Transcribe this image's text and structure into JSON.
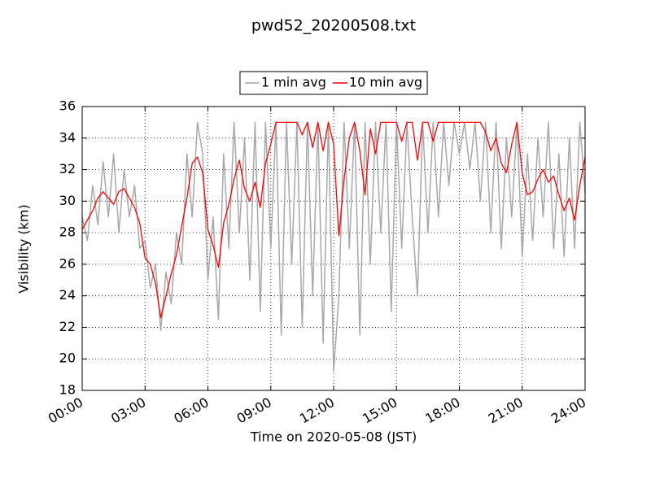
{
  "chart_data": {
    "type": "line",
    "title": "pwd52_20200508.txt",
    "x_label": "Time on 2020-05-08 (JST)",
    "y_label": "Visibility (km)",
    "xlim": [
      0,
      24
    ],
    "ylim": [
      18,
      36
    ],
    "xticks": [
      {
        "value": 0,
        "label": "00:00"
      },
      {
        "value": 3,
        "label": "03:00"
      },
      {
        "value": 6,
        "label": "06:00"
      },
      {
        "value": 9,
        "label": "09:00"
      },
      {
        "value": 12,
        "label": "12:00"
      },
      {
        "value": 15,
        "label": "15:00"
      },
      {
        "value": 18,
        "label": "18:00"
      },
      {
        "value": 21,
        "label": "21:00"
      },
      {
        "value": 24,
        "label": "24:00"
      }
    ],
    "yticks": [
      18,
      20,
      22,
      24,
      26,
      28,
      30,
      32,
      34,
      36
    ],
    "grid": true,
    "legend": "top",
    "x": [
      0,
      0.25,
      0.5,
      0.75,
      1,
      1.25,
      1.5,
      1.75,
      2,
      2.25,
      2.5,
      2.75,
      3,
      3.25,
      3.5,
      3.75,
      4,
      4.25,
      4.5,
      4.75,
      5,
      5.25,
      5.5,
      5.75,
      6,
      6.25,
      6.5,
      6.75,
      7,
      7.25,
      7.5,
      7.75,
      8,
      8.25,
      8.5,
      8.75,
      9,
      9.25,
      9.5,
      9.75,
      10,
      10.25,
      10.5,
      10.75,
      11,
      11.25,
      11.5,
      11.75,
      12,
      12.25,
      12.5,
      12.75,
      13,
      13.25,
      13.5,
      13.75,
      14,
      14.25,
      14.5,
      14.75,
      15,
      15.25,
      15.5,
      15.75,
      16,
      16.25,
      16.5,
      16.75,
      17,
      17.25,
      17.5,
      17.75,
      18,
      18.25,
      18.5,
      18.75,
      19,
      19.25,
      19.5,
      19.75,
      20,
      20.25,
      20.5,
      20.75,
      21,
      21.25,
      21.5,
      21.75,
      22,
      22.25,
      22.5,
      22.75,
      23,
      23.25,
      23.5,
      23.75,
      24
    ],
    "series": [
      {
        "name": "1 min avg",
        "color": "#a8a8a8",
        "values": [
          29,
          27.5,
          31,
          28.5,
          32.5,
          29,
          33,
          28,
          32,
          29,
          31,
          27,
          27.5,
          24.5,
          26,
          21.8,
          25.5,
          23.5,
          28,
          26,
          33,
          29,
          35,
          33,
          25,
          29,
          22.5,
          33,
          27,
          35,
          28,
          34,
          25,
          35,
          23,
          35,
          27,
          35,
          21.5,
          35,
          26,
          35,
          22,
          35,
          24,
          35,
          21,
          35,
          19.2,
          24,
          35,
          27,
          35,
          21.5,
          35,
          26,
          35,
          28,
          35,
          23,
          35,
          27,
          35,
          29,
          24,
          35,
          28,
          35,
          29,
          35,
          31,
          35,
          33,
          35,
          32,
          35,
          30,
          35,
          28,
          35,
          27,
          34,
          29,
          35,
          26.5,
          33,
          27.5,
          34,
          29,
          35,
          27,
          33,
          26.5,
          34,
          27,
          35,
          30.5
        ]
      },
      {
        "name": "10 min avg",
        "color": "#ff0000",
        "values": [
          28.2,
          28.8,
          29.4,
          30.2,
          30.6,
          30.2,
          29.8,
          30.6,
          30.8,
          30.2,
          29.6,
          28.6,
          26.4,
          26,
          24.8,
          22.6,
          24,
          25.4,
          26.6,
          28.4,
          30.2,
          32.4,
          32.8,
          31.8,
          28.2,
          27.2,
          25.8,
          28.6,
          29.8,
          31.4,
          32.6,
          30.8,
          30,
          31.2,
          29.6,
          32.4,
          33.6,
          35,
          35,
          35,
          35,
          35,
          34.2,
          35,
          33.4,
          35,
          33.2,
          35,
          33.6,
          27.8,
          31.4,
          34,
          35,
          33.2,
          30.4,
          34.6,
          33,
          35,
          35,
          35,
          35,
          33.8,
          35,
          35,
          32.6,
          35,
          35,
          33.8,
          35,
          35,
          35,
          35,
          35,
          35,
          35,
          35,
          35,
          34.4,
          33.2,
          34,
          32.4,
          31.8,
          33.6,
          35,
          31.8,
          30.4,
          30.6,
          31.4,
          32,
          31.2,
          31.6,
          30.4,
          29.4,
          30.2,
          28.8,
          31,
          32.8
        ]
      }
    ]
  }
}
